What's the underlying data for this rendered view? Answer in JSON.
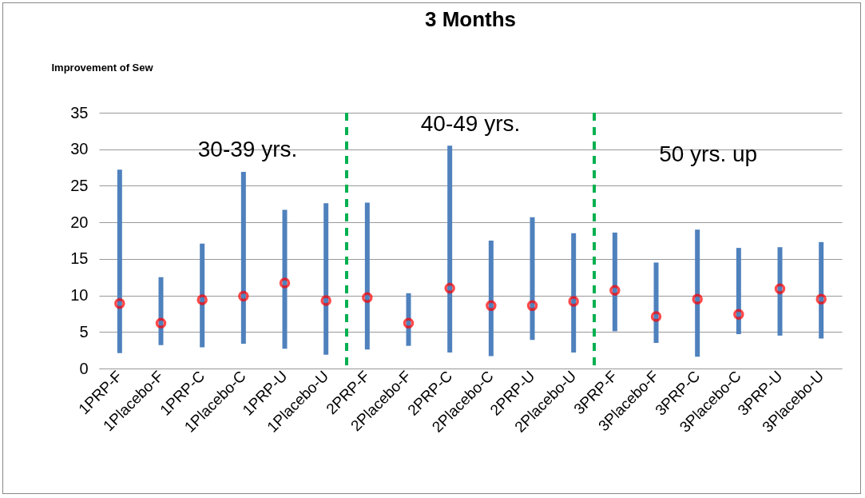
{
  "chart_data": {
    "type": "bar",
    "title": "3 Months",
    "ylabel": "Improvement of Sew",
    "categories": [
      "1PRP-F",
      "1Placebo-F",
      "1PRP-C",
      "1Placebo-C",
      "1PRP-U",
      "1Placebo-U",
      "2PRP-F",
      "2Placebo-F",
      "2PRP-C",
      "2Placebo-C",
      "2PRP-U",
      "2Placebo-U",
      "3PRP-F",
      "3Placebo-F",
      "3PRP-C",
      "3Placebo-C",
      "3PRP-U",
      "3Placebo-U"
    ],
    "ylim": [
      0,
      35
    ],
    "yticks": [
      0,
      5,
      10,
      15,
      20,
      25,
      30,
      35
    ],
    "grid": "y",
    "series": [
      {
        "color": "#4f81bd",
        "base": [
          2.1,
          3.2,
          2.9,
          3.4,
          2.7,
          1.9,
          2.6,
          3.1,
          2.2,
          1.7,
          3.9,
          2.2,
          5.1,
          3.5,
          1.6,
          4.7,
          4.5,
          4.1
        ],
        "values": [
          25.1,
          9.3,
          14.2,
          23.5,
          19.0,
          20.7,
          20.1,
          7.2,
          28.3,
          15.8,
          16.8,
          16.3,
          13.5,
          11.0,
          17.4,
          11.8,
          12.1,
          13.2
        ]
      },
      {
        "type": "scatter",
        "color": "#ff0000",
        "marker": "circle",
        "values": [
          8.9,
          6.2,
          9.4,
          9.9,
          11.7,
          9.3,
          9.7,
          6.2,
          11.0,
          8.6,
          8.6,
          9.2,
          10.7,
          7.1,
          9.5,
          7.4,
          10.9,
          9.5
        ]
      }
    ],
    "annotations": [
      "30-39 yrs.",
      "40-49 yrs.",
      "50 yrs. up"
    ]
  }
}
